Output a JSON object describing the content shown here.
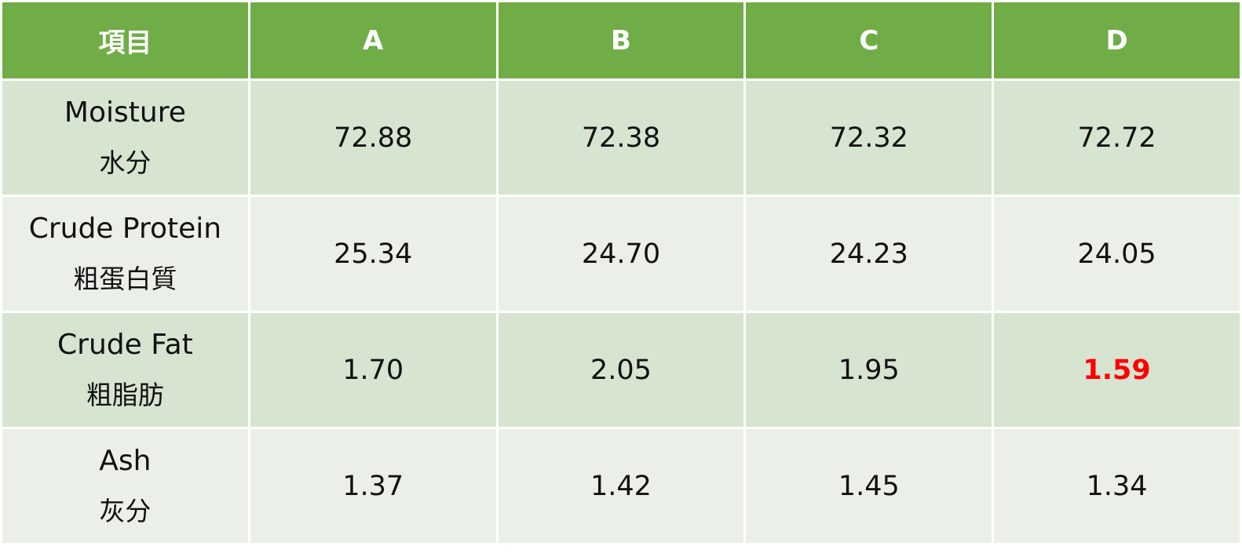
{
  "chart_data": {
    "type": "table",
    "columns": [
      "項目",
      "A",
      "B",
      "C",
      "D"
    ],
    "rows": [
      {
        "item_en": "Moisture",
        "item_zh": "水分",
        "values": [
          "72.88",
          "72.38",
          "72.32",
          "72.72"
        ]
      },
      {
        "item_en": "Crude Protein",
        "item_zh": "粗蛋白質",
        "values": [
          "25.34",
          "24.70",
          "24.23",
          "24.05"
        ]
      },
      {
        "item_en": "Crude Fat",
        "item_zh": "粗脂肪",
        "values": [
          "1.70",
          "2.05",
          "1.95",
          "1.59"
        ]
      },
      {
        "item_en": "Ash",
        "item_zh": "灰分",
        "values": [
          "1.37",
          "1.42",
          "1.45",
          "1.34"
        ]
      }
    ],
    "highlighted_cell": {
      "row": 2,
      "column": 3,
      "color": "#ff0000"
    }
  },
  "colors": {
    "header_bg": "#70ad47",
    "row_odd_bg": "#d6e4d0",
    "row_even_bg": "#eaf0e8",
    "highlight": "#ff0000"
  }
}
